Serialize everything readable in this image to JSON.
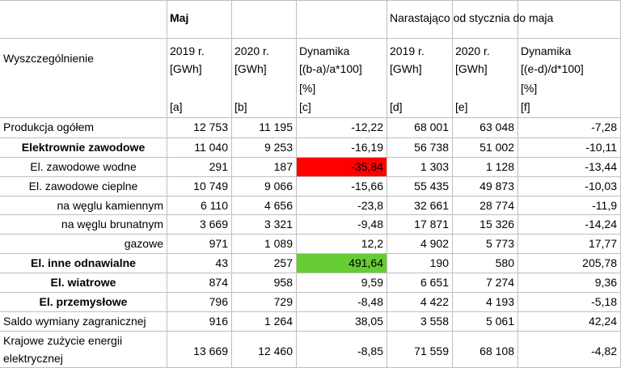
{
  "header": {
    "row_label": "Wyszczególnienie",
    "group_month": "Maj",
    "group_ytd": "Narastająco od stycznia do maja",
    "year_2019": "2019 r.",
    "year_2020": "2020 r.",
    "dynamics": "Dynamika",
    "unit_gwh": "[GWh]",
    "formula_c": "[(b-a)/a*100]",
    "formula_f": "[(e-d)/d*100]",
    "unit_pct": "[%]",
    "col_a": "[a]",
    "col_b": "[b]",
    "col_c": "[c]",
    "col_d": "[d]",
    "col_e": "[e]",
    "col_f": "[f]"
  },
  "rows": [
    {
      "label": "Produkcja ogółem",
      "a": "12 753",
      "b": "11 195",
      "c": "-12,22",
      "d": "68 001",
      "e": "63 048",
      "f": "-7,28"
    },
    {
      "label": "Elektrownie zawodowe",
      "a": "11 040",
      "b": "9 253",
      "c": "-16,19",
      "d": "56 738",
      "e": "51 002",
      "f": "-10,11"
    },
    {
      "label": "El. zawodowe wodne",
      "a": "291",
      "b": "187",
      "c": "-35,84",
      "d": "1 303",
      "e": "1 128",
      "f": "-13,44"
    },
    {
      "label": "El. zawodowe cieplne",
      "a": "10 749",
      "b": "9 066",
      "c": "-15,66",
      "d": "55 435",
      "e": "49 873",
      "f": "-10,03"
    },
    {
      "label": "na węglu kamiennym",
      "a": "6 110",
      "b": "4 656",
      "c": "-23,8",
      "d": "32 661",
      "e": "28 774",
      "f": "-11,9"
    },
    {
      "label": "na węglu brunatnym",
      "a": "3 669",
      "b": "3 321",
      "c": "-9,48",
      "d": "17 871",
      "e": "15 326",
      "f": "-14,24"
    },
    {
      "label": "gazowe",
      "a": "971",
      "b": "1 089",
      "c": "12,2",
      "d": "4 902",
      "e": "5 773",
      "f": "17,77"
    },
    {
      "label": "El. inne odnawialne",
      "a": "43",
      "b": "257",
      "c": "491,64",
      "d": "190",
      "e": "580",
      "f": "205,78"
    },
    {
      "label": "El. wiatrowe",
      "a": "874",
      "b": "958",
      "c": "9,59",
      "d": "6 651",
      "e": "7 274",
      "f": "9,36"
    },
    {
      "label": "El. przemysłowe",
      "a": "796",
      "b": "729",
      "c": "-8,48",
      "d": "4 422",
      "e": "4 193",
      "f": "-5,18"
    },
    {
      "label": "Saldo wymiany zagranicznej",
      "a": "916",
      "b": "1 264",
      "c": "38,05",
      "d": "3 558",
      "e": "5 061",
      "f": "42,24"
    },
    {
      "label_line1": "Krajowe zużycie energii",
      "label_line2": "elektrycznej",
      "a": "13 669",
      "b": "12 460",
      "c": "-8,85",
      "d": "71 559",
      "e": "68 108",
      "f": "-4,82"
    }
  ],
  "highlight_colors": {
    "negative_max": "#ff0000",
    "positive_max": "#66cc33"
  }
}
